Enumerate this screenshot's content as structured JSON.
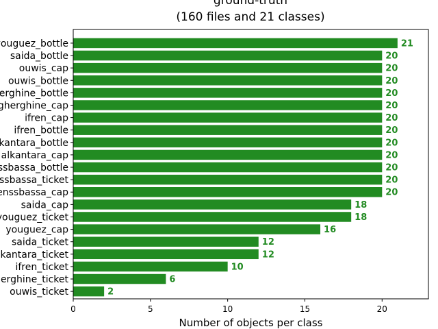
{
  "chart_data": {
    "type": "bar",
    "orientation": "horizontal",
    "title": "ground-truth",
    "subtitle": "(160 files and 21 classes)",
    "xlabel": "Number of objects per class",
    "ylabel": "",
    "xlim": [
      0,
      23
    ],
    "xticks": [
      "0",
      "5",
      "10",
      "15",
      "20"
    ],
    "grid": false,
    "bar_color": "#228B22",
    "label_color": "#228B22",
    "categories": [
      "youguez_bottle",
      "saida_bottle",
      "ouwis_cap",
      "ouwis_bottle",
      "gherghine_bottle",
      "gherghine_cap",
      "ifren_cap",
      "ifren_bottle",
      "alkantara_bottle",
      "alkantara_cap",
      "benssbassa_bottle",
      "benssbassa_ticket",
      "benssbassa_cap",
      "saida_cap",
      "youguez_ticket",
      "youguez_cap",
      "saida_ticket",
      "alkantara_ticket",
      "ifren_ticket",
      "gherghine_ticket",
      "ouwis_ticket"
    ],
    "values": [
      21,
      20,
      20,
      20,
      20,
      20,
      20,
      20,
      20,
      20,
      20,
      20,
      20,
      18,
      18,
      16,
      12,
      12,
      10,
      6,
      2
    ],
    "value_labels": [
      "21",
      "20",
      "20",
      "20",
      "20",
      "20",
      "20",
      "20",
      "20",
      "20",
      "20",
      "20",
      "20",
      "18",
      "18",
      "16",
      "12",
      "12",
      "10",
      "6",
      "2"
    ]
  }
}
